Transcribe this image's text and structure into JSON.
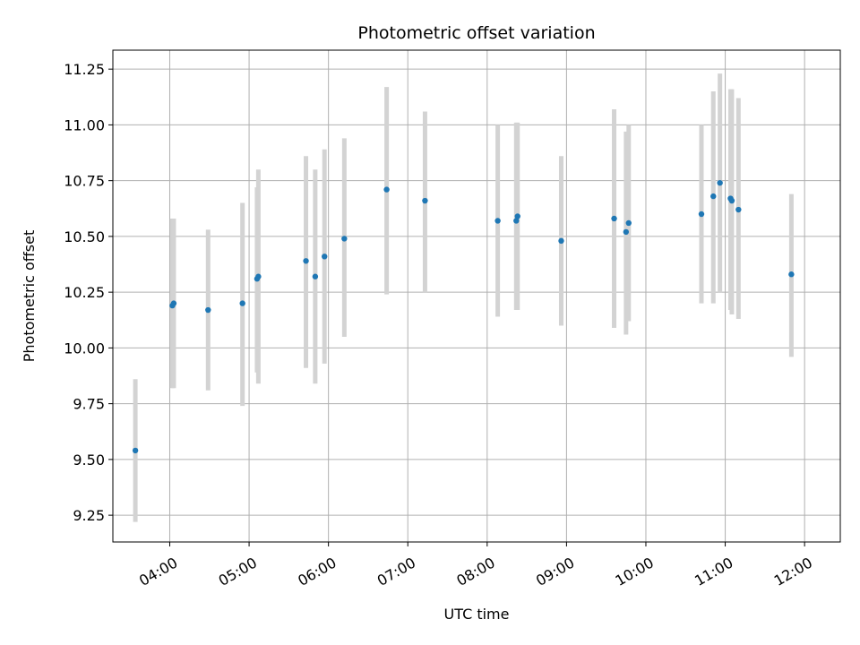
{
  "chart_data": {
    "type": "scatter",
    "title": "Photometric offset variation",
    "xlabel": "UTC time",
    "ylabel": "Photometric offset",
    "xlim": [
      "03:17",
      "12:27"
    ],
    "ylim": [
      9.13,
      11.335
    ],
    "xticks": [
      "04:00",
      "05:00",
      "06:00",
      "07:00",
      "08:00",
      "09:00",
      "10:00",
      "11:00",
      "12:00"
    ],
    "yticks": [
      "9.25",
      "9.50",
      "9.75",
      "10.00",
      "10.25",
      "10.50",
      "10.75",
      "11.00",
      "11.25"
    ],
    "grid": true,
    "colors": {
      "point": "#1f77b4",
      "errorbar": "#d3d3d3",
      "grid": "#b0b0b0"
    },
    "series": [
      {
        "points": [
          {
            "x": "03:34",
            "y": 9.54,
            "lo": 9.22,
            "hi": 9.86
          },
          {
            "x": "04:02",
            "y": 10.19,
            "lo": 9.82,
            "hi": 10.58
          },
          {
            "x": "04:03",
            "y": 10.2,
            "lo": 9.82,
            "hi": 10.58
          },
          {
            "x": "04:29",
            "y": 10.17,
            "lo": 9.81,
            "hi": 10.53
          },
          {
            "x": "04:55",
            "y": 10.2,
            "lo": 9.74,
            "hi": 10.65
          },
          {
            "x": "05:06",
            "y": 10.31,
            "lo": 9.89,
            "hi": 10.72
          },
          {
            "x": "05:07",
            "y": 10.32,
            "lo": 9.84,
            "hi": 10.8
          },
          {
            "x": "05:43",
            "y": 10.39,
            "lo": 9.91,
            "hi": 10.86
          },
          {
            "x": "05:50",
            "y": 10.32,
            "lo": 9.84,
            "hi": 10.8
          },
          {
            "x": "05:57",
            "y": 10.41,
            "lo": 9.93,
            "hi": 10.89
          },
          {
            "x": "06:12",
            "y": 10.49,
            "lo": 10.05,
            "hi": 10.94
          },
          {
            "x": "06:44",
            "y": 10.71,
            "lo": 10.24,
            "hi": 11.17
          },
          {
            "x": "07:13",
            "y": 10.66,
            "lo": 10.25,
            "hi": 11.06
          },
          {
            "x": "08:08",
            "y": 10.57,
            "lo": 10.14,
            "hi": 11.0
          },
          {
            "x": "08:22",
            "y": 10.57,
            "lo": 10.17,
            "hi": 11.01
          },
          {
            "x": "08:23",
            "y": 10.59,
            "lo": 10.17,
            "hi": 11.01
          },
          {
            "x": "08:56",
            "y": 10.48,
            "lo": 10.1,
            "hi": 10.86
          },
          {
            "x": "09:36",
            "y": 10.58,
            "lo": 10.09,
            "hi": 11.07
          },
          {
            "x": "09:45",
            "y": 10.52,
            "lo": 10.06,
            "hi": 10.97
          },
          {
            "x": "09:47",
            "y": 10.56,
            "lo": 10.12,
            "hi": 11.0
          },
          {
            "x": "10:42",
            "y": 10.6,
            "lo": 10.2,
            "hi": 11.0
          },
          {
            "x": "10:51",
            "y": 10.68,
            "lo": 10.2,
            "hi": 11.15
          },
          {
            "x": "10:56",
            "y": 10.74,
            "lo": 10.25,
            "hi": 11.23
          },
          {
            "x": "11:04",
            "y": 10.67,
            "lo": 10.17,
            "hi": 11.16
          },
          {
            "x": "11:05",
            "y": 10.66,
            "lo": 10.15,
            "hi": 11.16
          },
          {
            "x": "11:10",
            "y": 10.62,
            "lo": 10.13,
            "hi": 11.12
          },
          {
            "x": "11:50",
            "y": 10.33,
            "lo": 9.96,
            "hi": 10.69
          }
        ]
      }
    ]
  }
}
